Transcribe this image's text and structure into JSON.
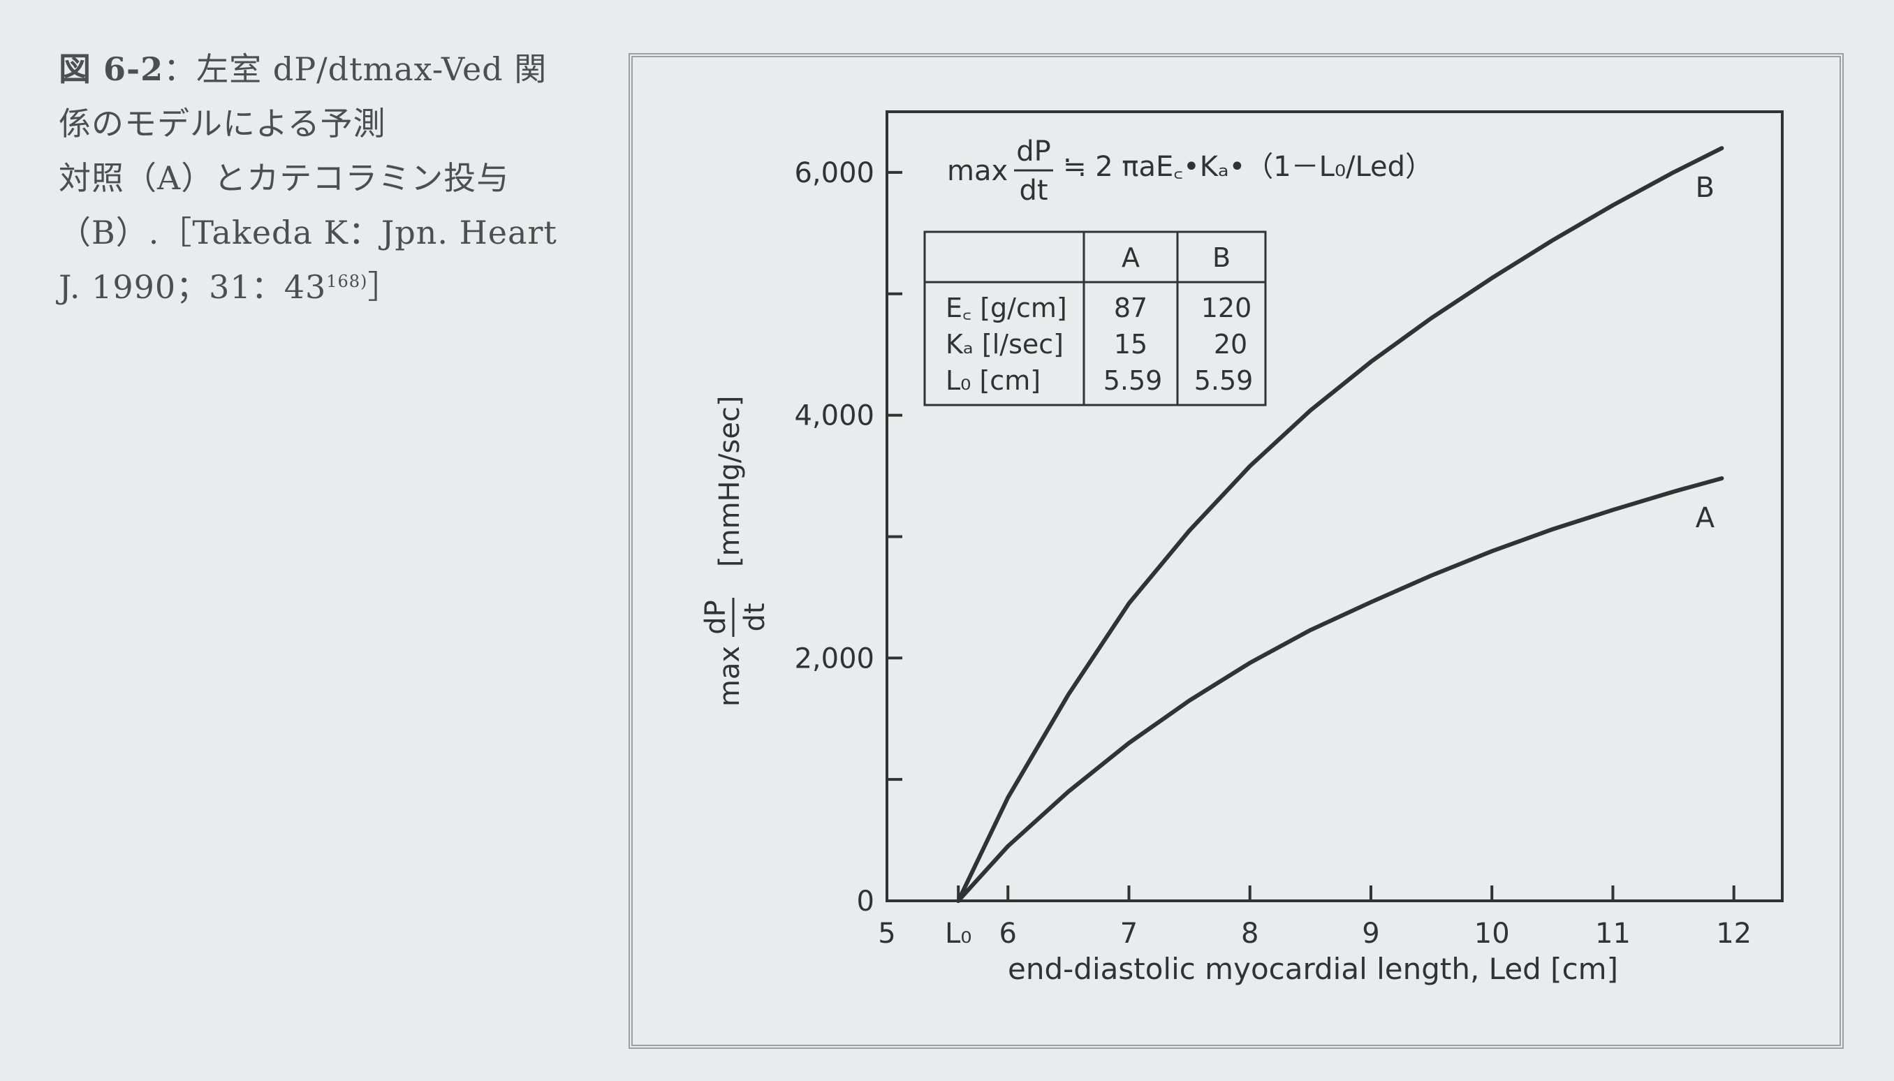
{
  "caption": {
    "fig_label": "図 6-2",
    "lines": [
      "：左室 dP/dtmax-Ved 関",
      "係のモデルによる予測",
      "対照（A）とカテコラミン投与",
      "（B）.［Takeda K：Jpn. Heart",
      "J. 1990；31：43"
    ],
    "ref_sup": "168)",
    "ref_close": "］"
  },
  "chart_data": {
    "type": "line",
    "xlabel": "end-diastolic myocardial length, Led [cm]",
    "ylabel": "[mmHg/sec]",
    "ylabel_prefix": "max",
    "ylabel_num": "dP",
    "ylabel_den": "dt",
    "xlim": [
      5,
      12.4
    ],
    "ylim": [
      0,
      6500
    ],
    "x_ticks": [
      {
        "v": 5,
        "label": "5"
      },
      {
        "v": 5.59,
        "label": "L₀"
      },
      {
        "v": 6,
        "label": "6"
      },
      {
        "v": 7,
        "label": "7"
      },
      {
        "v": 8,
        "label": "8"
      },
      {
        "v": 9,
        "label": "9"
      },
      {
        "v": 10,
        "label": "10"
      },
      {
        "v": 11,
        "label": "11"
      },
      {
        "v": 12,
        "label": "12"
      }
    ],
    "y_ticks": [
      {
        "v": 0,
        "label": "0"
      },
      {
        "v": 1000,
        "label": ""
      },
      {
        "v": 2000,
        "label": "2,000"
      },
      {
        "v": 3000,
        "label": ""
      },
      {
        "v": 4000,
        "label": "4,000"
      },
      {
        "v": 5000,
        "label": ""
      },
      {
        "v": 6000,
        "label": "6,000"
      }
    ],
    "formula": {
      "prefix": "max",
      "num": "dP",
      "den": "dt",
      "rhs": "≒ 2 πaE꜀•Kₐ•（1－L₀/Led）"
    },
    "series": [
      {
        "name": "A",
        "x": [
          5.59,
          6.0,
          6.5,
          7.0,
          7.5,
          8.0,
          8.5,
          9.0,
          9.5,
          10.0,
          10.5,
          11.0,
          11.5,
          11.9
        ],
        "y": [
          0,
          450,
          900,
          1300,
          1650,
          1960,
          2230,
          2460,
          2680,
          2880,
          3060,
          3220,
          3370,
          3480
        ]
      },
      {
        "name": "B",
        "x": [
          5.59,
          6.0,
          6.5,
          7.0,
          7.5,
          8.0,
          8.5,
          9.0,
          9.5,
          10.0,
          10.5,
          11.0,
          11.5,
          11.9
        ],
        "y": [
          0,
          850,
          1700,
          2450,
          3050,
          3580,
          4040,
          4440,
          4800,
          5130,
          5440,
          5730,
          6000,
          6200
        ]
      }
    ],
    "table": {
      "headers": [
        "",
        "A",
        "B"
      ],
      "rows": [
        [
          "E꜀ [g/cm]",
          "87",
          "120"
        ],
        [
          "Kₐ [l/sec]",
          "15",
          "20"
        ],
        [
          "L₀ [cm]",
          "5.59",
          "5.59"
        ]
      ]
    },
    "colors": {
      "line": "#2f3333",
      "frame": "#9aa0a0",
      "background": "#e9ecec"
    }
  }
}
